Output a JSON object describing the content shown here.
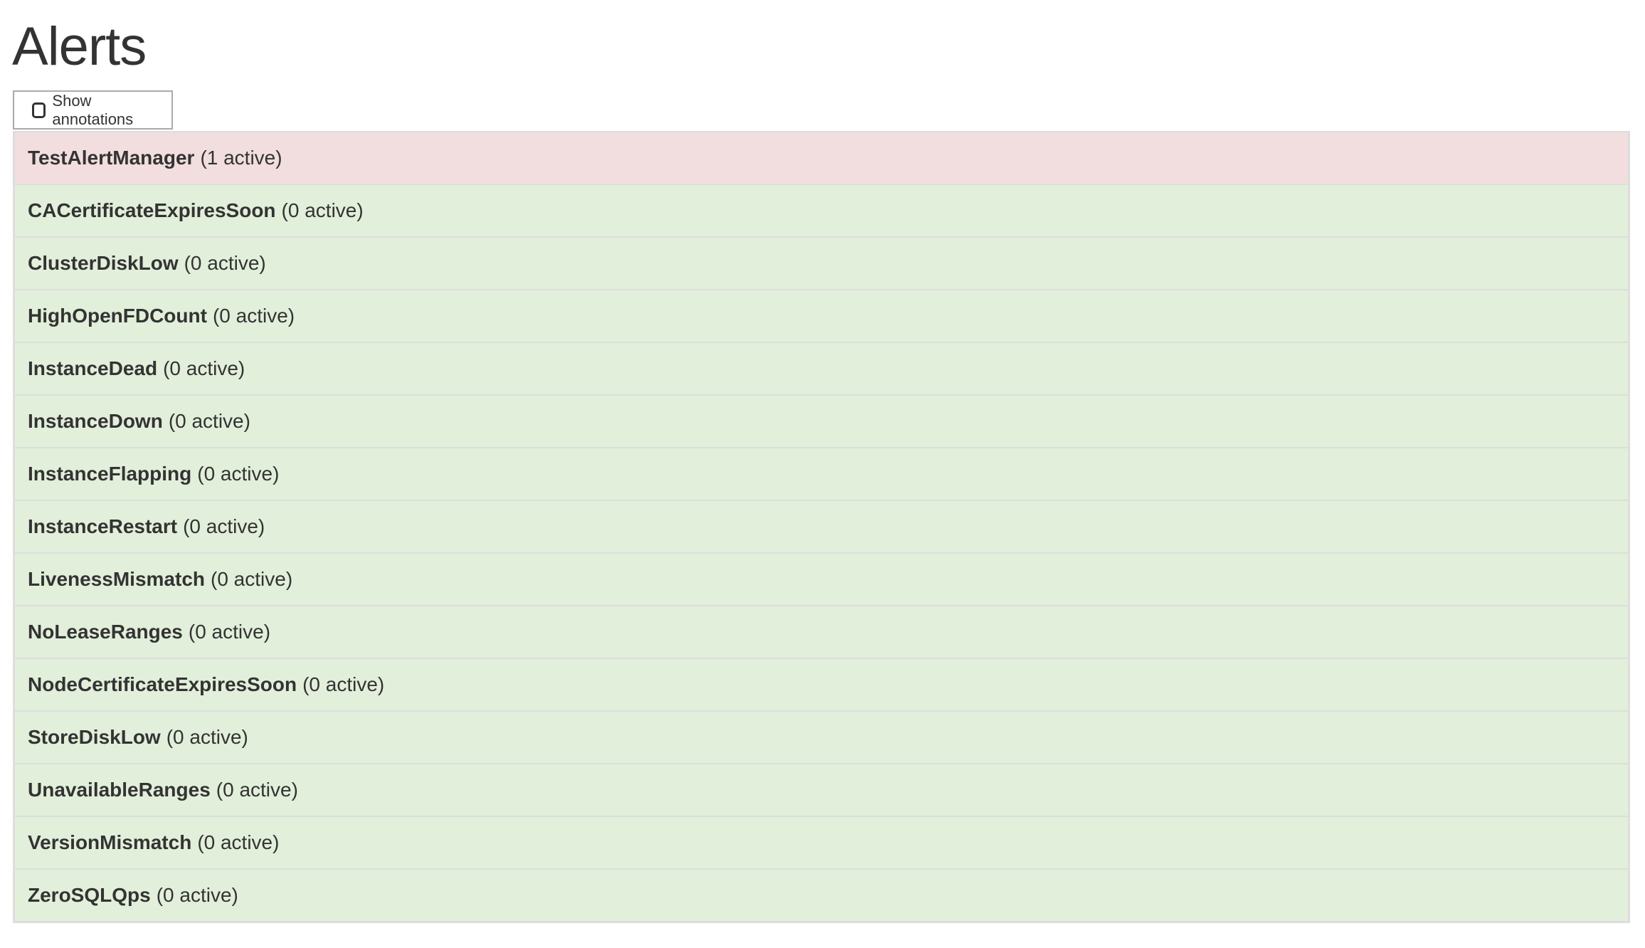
{
  "page_title": "Alerts",
  "show_annotations": {
    "label": "Show annotations",
    "checked": false
  },
  "colors": {
    "firing": "#f2dede",
    "inactive": "#e2efda",
    "border": "#dddddd"
  },
  "alerts": [
    {
      "name": "TestAlertManager",
      "count": "(1 active)",
      "state": "firing"
    },
    {
      "name": "CACertificateExpiresSoon",
      "count": "(0 active)",
      "state": "inactive"
    },
    {
      "name": "ClusterDiskLow",
      "count": "(0 active)",
      "state": "inactive"
    },
    {
      "name": "HighOpenFDCount",
      "count": "(0 active)",
      "state": "inactive"
    },
    {
      "name": "InstanceDead",
      "count": "(0 active)",
      "state": "inactive"
    },
    {
      "name": "InstanceDown",
      "count": "(0 active)",
      "state": "inactive"
    },
    {
      "name": "InstanceFlapping",
      "count": "(0 active)",
      "state": "inactive"
    },
    {
      "name": "InstanceRestart",
      "count": "(0 active)",
      "state": "inactive"
    },
    {
      "name": "LivenessMismatch",
      "count": "(0 active)",
      "state": "inactive"
    },
    {
      "name": "NoLeaseRanges",
      "count": "(0 active)",
      "state": "inactive"
    },
    {
      "name": "NodeCertificateExpiresSoon",
      "count": "(0 active)",
      "state": "inactive"
    },
    {
      "name": "StoreDiskLow",
      "count": "(0 active)",
      "state": "inactive"
    },
    {
      "name": "UnavailableRanges",
      "count": "(0 active)",
      "state": "inactive"
    },
    {
      "name": "VersionMismatch",
      "count": "(0 active)",
      "state": "inactive"
    },
    {
      "name": "ZeroSQLQps",
      "count": "(0 active)",
      "state": "inactive"
    }
  ]
}
